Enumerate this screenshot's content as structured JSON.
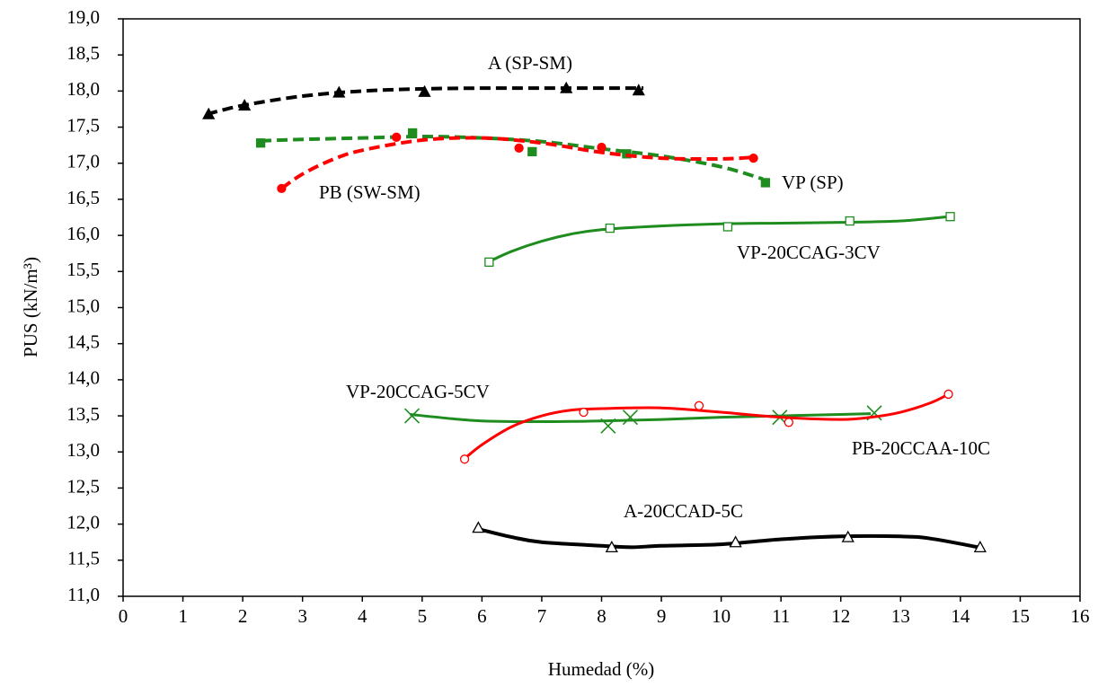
{
  "chart_data": {
    "type": "scatter",
    "xlabel": "Humedad (%)",
    "ylabel": "PUS (kN/m³)",
    "xlim": [
      0,
      16
    ],
    "xticks": [
      0,
      1,
      2,
      3,
      4,
      5,
      6,
      7,
      8,
      9,
      10,
      11,
      12,
      13,
      14,
      15,
      16
    ],
    "ylim": [
      11,
      19
    ],
    "yticks": [
      {
        "value": 11,
        "label": "11,0"
      },
      {
        "value": 11.5,
        "label": "11,5"
      },
      {
        "value": 12,
        "label": "12,0"
      },
      {
        "value": 12.5,
        "label": "12,5"
      },
      {
        "value": 13,
        "label": "13,0"
      },
      {
        "value": 13.5,
        "label": "13,5"
      },
      {
        "value": 14,
        "label": "14,0"
      },
      {
        "value": 14.5,
        "label": "14,5"
      },
      {
        "value": 15,
        "label": "15,0"
      },
      {
        "value": 15.5,
        "label": "15,5"
      },
      {
        "value": 16,
        "label": "16,0"
      },
      {
        "value": 16.5,
        "label": "16,5"
      },
      {
        "value": 17,
        "label": "17,0"
      },
      {
        "value": 17.5,
        "label": "17,5"
      },
      {
        "value": 18,
        "label": "18,0"
      },
      {
        "value": 18.5,
        "label": "18,5"
      },
      {
        "value": 19,
        "label": "19,0"
      }
    ],
    "series": [
      {
        "name": "A (SP-SM)",
        "color": "#000000",
        "marker": "triangle",
        "filled": true,
        "dashed": true,
        "x": [
          1.43,
          2.03,
          3.61,
          5.04,
          7.41,
          8.62
        ],
        "values": [
          17.68,
          17.8,
          17.98,
          17.99,
          18.04,
          18.01
        ],
        "fit_x": [
          1.4,
          2,
          3,
          4,
          5,
          6,
          7,
          8,
          8.7
        ],
        "fit": [
          17.68,
          17.8,
          17.93,
          18.0,
          18.03,
          18.04,
          18.04,
          18.04,
          18.04
        ]
      },
      {
        "name": "VP (SP)",
        "color": "#1e8c1e",
        "marker": "square",
        "filled": true,
        "dashed": true,
        "x": [
          2.3,
          4.84,
          6.84,
          8.42,
          10.74
        ],
        "values": [
          17.28,
          17.42,
          17.16,
          17.13,
          16.73
        ],
        "fit_x": [
          2.3,
          3,
          4,
          5,
          6,
          7,
          8,
          9,
          10,
          10.7
        ],
        "fit": [
          17.31,
          17.33,
          17.35,
          17.37,
          17.35,
          17.3,
          17.2,
          17.1,
          16.95,
          16.78
        ]
      },
      {
        "name": "PB (SW-SM)",
        "color": "#ff0000",
        "marker": "circle",
        "filled": true,
        "dashed": true,
        "x": [
          2.65,
          4.57,
          6.62,
          8.0,
          10.54
        ],
        "values": [
          16.65,
          17.36,
          17.21,
          17.22,
          17.07
        ],
        "fit_x": [
          2.65,
          3,
          3.5,
          4,
          5,
          6,
          7,
          8,
          9,
          10,
          10.5
        ],
        "fit": [
          16.65,
          16.85,
          17.05,
          17.18,
          17.32,
          17.35,
          17.28,
          17.15,
          17.07,
          17.06,
          17.08
        ]
      },
      {
        "name": "VP-20CCAG-3CV",
        "color": "#1e8c1e",
        "marker": "square",
        "filled": false,
        "dashed": false,
        "x": [
          6.12,
          8.14,
          10.11,
          12.15,
          13.83
        ],
        "values": [
          15.63,
          16.1,
          16.12,
          16.2,
          16.26
        ],
        "fit_x": [
          6.1,
          6.5,
          7,
          7.5,
          8,
          9,
          10,
          11,
          12,
          13,
          13.8
        ],
        "fit": [
          15.63,
          15.78,
          15.92,
          16.02,
          16.08,
          16.13,
          16.16,
          16.17,
          16.18,
          16.2,
          16.26
        ]
      },
      {
        "name": "VP-20CCAG-5CV",
        "color": "#1e8c1e",
        "marker": "x",
        "filled": false,
        "dashed": false,
        "x": [
          4.83,
          8.11,
          8.48,
          10.98,
          12.56
        ],
        "values": [
          13.5,
          13.36,
          13.48,
          13.48,
          13.54
        ],
        "fit_x": [
          4.8,
          5.5,
          6,
          7,
          8,
          9,
          10,
          11,
          12,
          12.5
        ],
        "fit": [
          13.52,
          13.46,
          13.43,
          13.42,
          13.43,
          13.45,
          13.48,
          13.5,
          13.52,
          13.53
        ]
      },
      {
        "name": "PB-20CCAA-10C",
        "color": "#ff0000",
        "marker": "circle",
        "filled": false,
        "dashed": false,
        "x": [
          5.71,
          7.7,
          9.63,
          11.13,
          13.8
        ],
        "values": [
          12.9,
          13.55,
          13.64,
          13.41,
          13.8
        ],
        "fit_x": [
          5.7,
          6,
          6.5,
          7,
          7.5,
          8,
          9,
          10,
          11,
          12,
          12.5,
          13,
          13.5,
          13.8
        ],
        "fit": [
          12.9,
          13.1,
          13.35,
          13.5,
          13.58,
          13.6,
          13.61,
          13.55,
          13.48,
          13.45,
          13.48,
          13.55,
          13.68,
          13.8
        ]
      },
      {
        "name": "A-20CCAD-5C",
        "color": "#000000",
        "marker": "triangle",
        "filled": false,
        "dashed": false,
        "x": [
          5.94,
          8.17,
          10.24,
          12.12,
          14.33
        ],
        "values": [
          11.95,
          11.68,
          11.75,
          11.82,
          11.68
        ],
        "fit_x": [
          5.9,
          6.5,
          7,
          8,
          8.5,
          9,
          10,
          11,
          12,
          13,
          13.5,
          14.3
        ],
        "fit": [
          11.94,
          11.82,
          11.75,
          11.7,
          11.68,
          11.7,
          11.72,
          11.79,
          11.83,
          11.83,
          11.8,
          11.68
        ]
      }
    ]
  }
}
